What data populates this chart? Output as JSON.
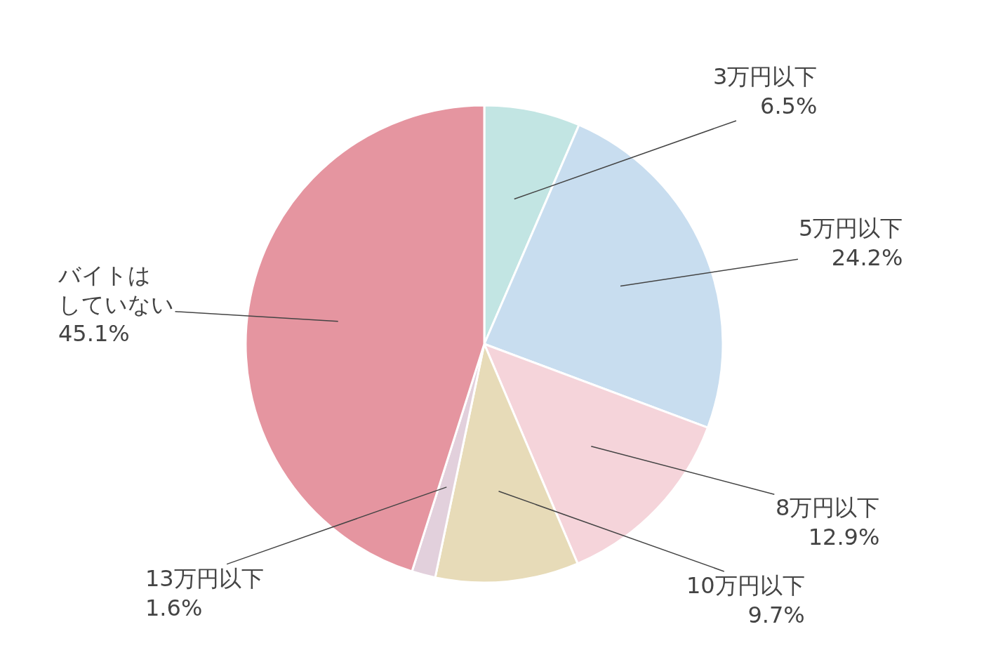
{
  "chart_data": {
    "type": "pie",
    "categories": [
      "3万円以下",
      "5万円以下",
      "8万円以下",
      "10万円以下",
      "13万円以下",
      "バイトはしていない"
    ],
    "values": [
      6.5,
      24.2,
      12.9,
      9.7,
      1.6,
      45.1
    ],
    "value_labels": [
      "6.5%",
      "24.2%",
      "12.9%",
      "9.7%",
      "1.6%",
      "45.1%"
    ],
    "colors": [
      "#c2e5e3",
      "#c8ddef",
      "#f5d4da",
      "#e7dbb8",
      "#e2d0dc",
      "#e595a0"
    ],
    "legend": false
  }
}
